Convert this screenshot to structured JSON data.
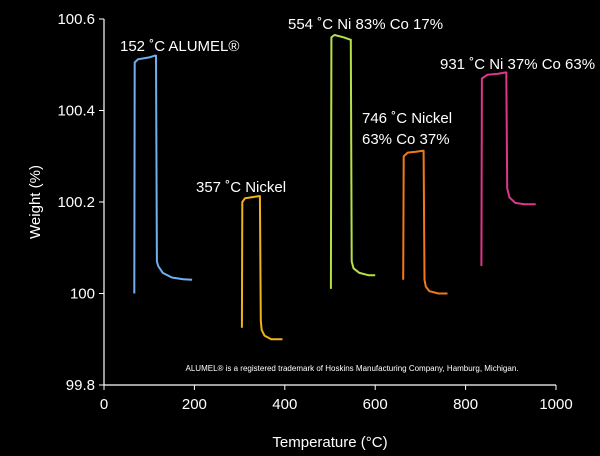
{
  "chart_data": {
    "type": "line",
    "xlabel": "Temperature (°C)",
    "ylabel": "Weight (%)",
    "xlim": [
      0,
      1000
    ],
    "ylim": [
      99.8,
      100.6
    ],
    "xticks": [
      "0",
      "200",
      "400",
      "600",
      "800",
      "1000"
    ],
    "yticks": [
      "99.8",
      "100",
      "100.2",
      "100.4",
      "100.6"
    ],
    "grid": false,
    "footnote": "ALUMEL® is a registered trademark of Hoskins Manufacturing Company, Hamburg, Michigan.",
    "series": [
      {
        "color": "#6fb0f0",
        "points": [
          [
            67,
            100.0
          ],
          [
            68,
            100.505
          ],
          [
            75,
            100.512
          ],
          [
            100,
            100.516
          ],
          [
            113,
            100.52
          ],
          [
            115,
            100.52
          ],
          [
            117,
            100.07
          ],
          [
            120,
            100.06
          ],
          [
            130,
            100.045
          ],
          [
            150,
            100.035
          ],
          [
            175,
            100.031
          ],
          [
            195,
            100.03
          ]
        ],
        "annotation": [
          "152 ˚C ALUMEL®"
        ]
      },
      {
        "color": "#f0b21a",
        "points": [
          [
            305,
            99.925
          ],
          [
            306,
            100.2
          ],
          [
            312,
            100.208
          ],
          [
            325,
            100.21
          ],
          [
            343,
            100.213
          ],
          [
            345,
            100.213
          ],
          [
            347,
            99.94
          ],
          [
            349,
            99.92
          ],
          [
            355,
            99.908
          ],
          [
            370,
            99.9
          ],
          [
            395,
            99.9
          ]
        ],
        "annotation": [
          "357 ˚C Nickel"
        ]
      },
      {
        "color": "#b5e04a",
        "points": [
          [
            502,
            100.01
          ],
          [
            503,
            100.56
          ],
          [
            510,
            100.565
          ],
          [
            530,
            100.56
          ],
          [
            544,
            100.555
          ],
          [
            546,
            100.555
          ],
          [
            548,
            100.07
          ],
          [
            552,
            100.055
          ],
          [
            565,
            100.045
          ],
          [
            585,
            100.04
          ],
          [
            600,
            100.04
          ]
        ],
        "annotation": [
          "554 ˚C Ni 83% Co 17%"
        ]
      },
      {
        "color": "#f07a1a",
        "points": [
          [
            662,
            100.03
          ],
          [
            663,
            100.3
          ],
          [
            672,
            100.308
          ],
          [
            690,
            100.31
          ],
          [
            705,
            100.312
          ],
          [
            707,
            100.312
          ],
          [
            709,
            100.03
          ],
          [
            712,
            100.015
          ],
          [
            720,
            100.005
          ],
          [
            740,
            100.0
          ],
          [
            760,
            100.0
          ]
        ],
        "annotation": [
          "746 ˚C Nickel",
          "63% Co 37%"
        ]
      },
      {
        "color": "#e0358a",
        "points": [
          [
            835,
            100.06
          ],
          [
            836,
            100.47
          ],
          [
            848,
            100.478
          ],
          [
            870,
            100.48
          ],
          [
            888,
            100.483
          ],
          [
            890,
            100.483
          ],
          [
            892,
            100.23
          ],
          [
            897,
            100.21
          ],
          [
            910,
            100.198
          ],
          [
            930,
            100.195
          ],
          [
            955,
            100.195
          ]
        ],
        "annotation": [
          "931 ˚C Ni 37% Co 63%"
        ]
      }
    ]
  }
}
